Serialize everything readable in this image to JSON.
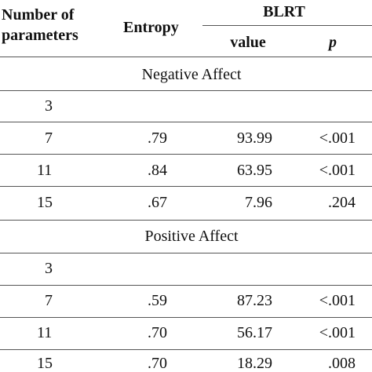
{
  "header": {
    "num_params_line1": "Number of",
    "num_params_line2": "parameters",
    "entropy": "Entropy",
    "blrt": "BLRT",
    "value": "value",
    "p": "p"
  },
  "sections": [
    {
      "title": "Negative Affect",
      "rows": [
        {
          "params": "3",
          "entropy": "",
          "value": "",
          "p": ""
        },
        {
          "params": "7",
          "entropy": ".79",
          "value": "93.99",
          "p": "<.001"
        },
        {
          "params": "11",
          "entropy": ".84",
          "value": "63.95",
          "p": "<.001"
        },
        {
          "params": "15",
          "entropy": ".67",
          "value": "7.96",
          "p": ".204"
        }
      ]
    },
    {
      "title": "Positive Affect",
      "rows": [
        {
          "params": "3",
          "entropy": "",
          "value": "",
          "p": ""
        },
        {
          "params": "7",
          "entropy": ".59",
          "value": "87.23",
          "p": "<.001"
        },
        {
          "params": "11",
          "entropy": ".70",
          "value": "56.17",
          "p": "<.001"
        },
        {
          "params": "15",
          "entropy": ".70",
          "value": "18.29",
          "p": ".008"
        }
      ]
    }
  ]
}
